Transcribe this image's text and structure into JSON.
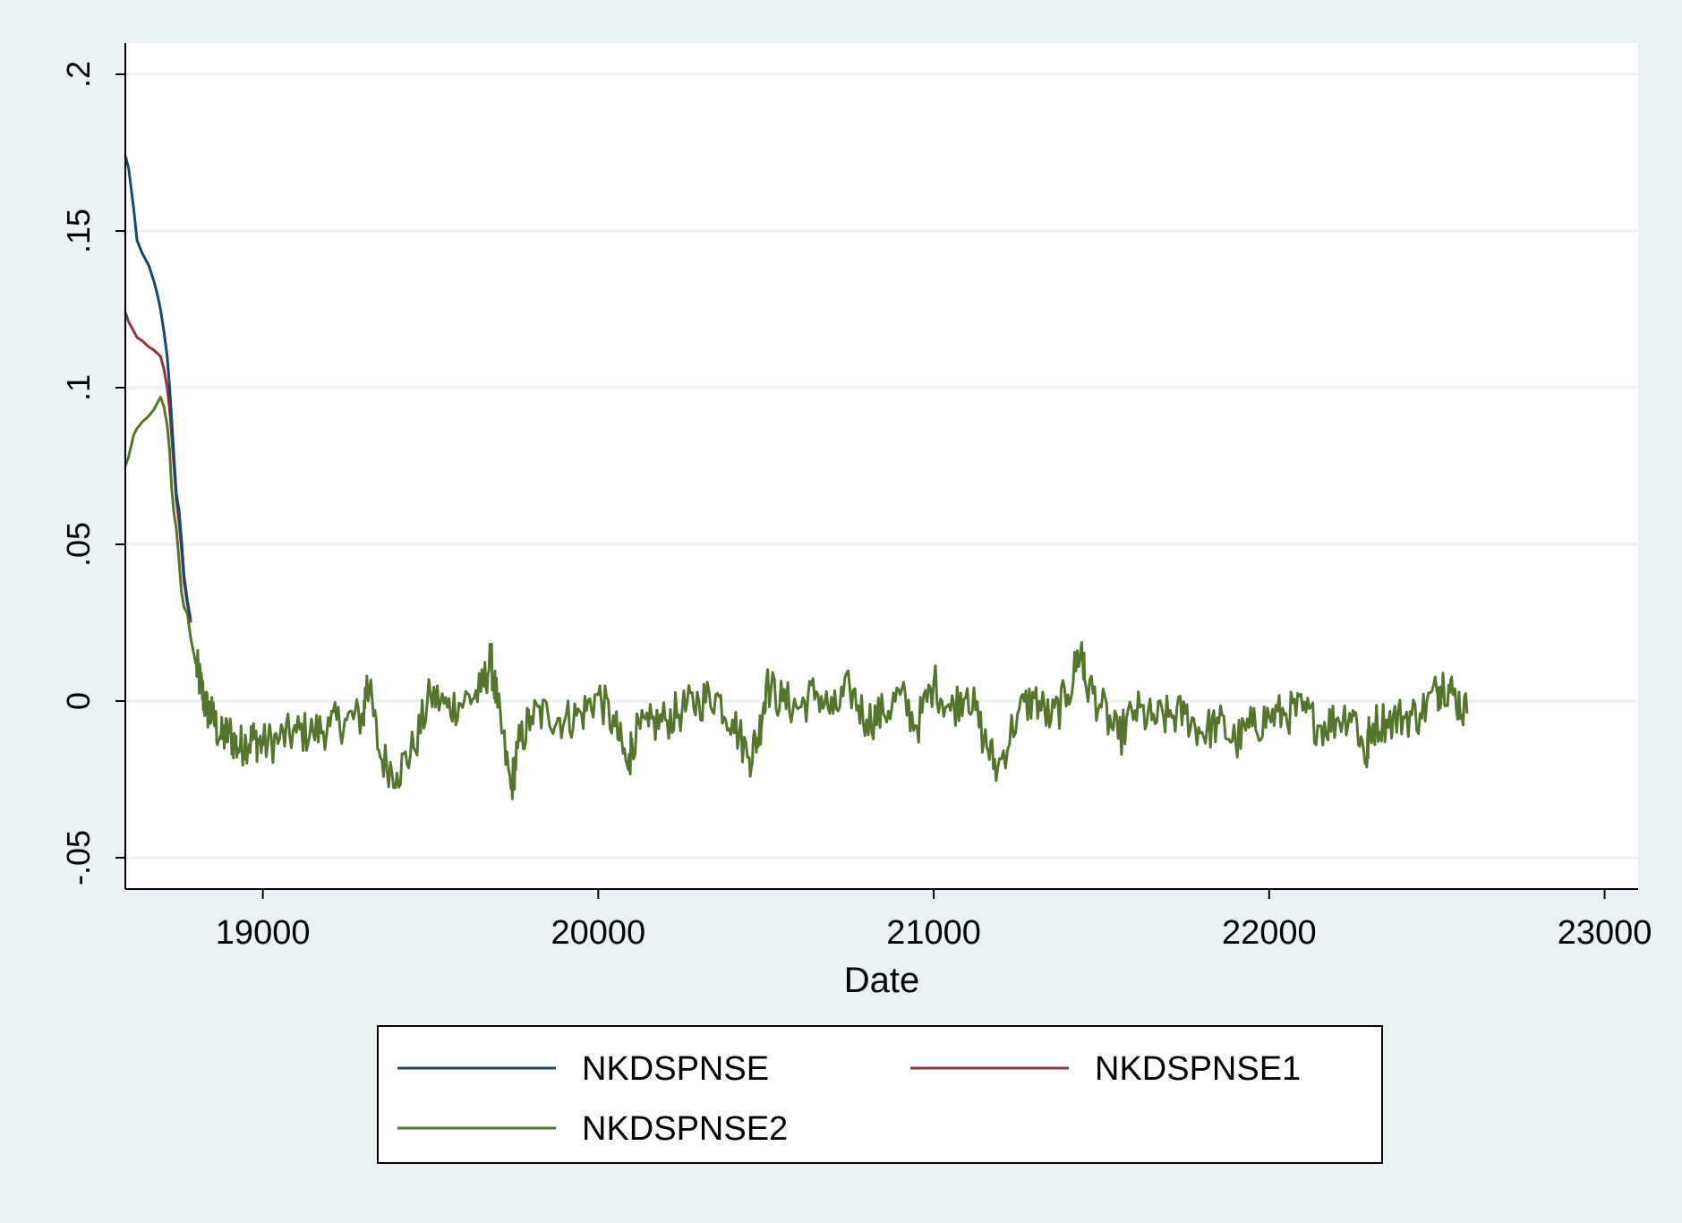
{
  "chart_data": {
    "type": "line",
    "xlabel": "Date",
    "ylabel": "",
    "title": "",
    "xlim": [
      18590,
      23100
    ],
    "ylim": [
      -0.06,
      0.21
    ],
    "x_ticks": [
      19000,
      20000,
      21000,
      22000,
      23000
    ],
    "x_tick_labels": [
      "19000",
      "20000",
      "21000",
      "22000",
      "23000"
    ],
    "y_ticks": [
      -0.05,
      0,
      0.05,
      0.1,
      0.15,
      0.2
    ],
    "y_tick_labels": [
      "-.05",
      "0",
      ".05",
      ".1",
      ".15",
      ".2"
    ],
    "grid": true,
    "legend_position": "bottom",
    "colors": {
      "outer_background": "#eaf2f3",
      "plot_background": "#ffffff",
      "grid": "#eaf2f3",
      "legend_border": "#000000"
    },
    "series": [
      {
        "name": "NKDSPNSE",
        "color": "#1a476f",
        "x": [
          18590,
          18600,
          18615,
          18625,
          18640,
          18660,
          18675,
          18685,
          18695,
          18705,
          18715,
          18722,
          18728,
          18735,
          18742,
          18750,
          18757,
          18765,
          18775,
          18785
        ],
        "y": [
          0.174,
          0.17,
          0.157,
          0.147,
          0.143,
          0.139,
          0.134,
          0.13,
          0.125,
          0.118,
          0.11,
          0.1,
          0.09,
          0.078,
          0.066,
          0.061,
          0.052,
          0.04,
          0.032,
          0.026
        ]
      },
      {
        "name": "NKDSPNSE1",
        "color": "#90353b",
        "x": [
          18590,
          18600,
          18615,
          18625,
          18640,
          18660,
          18675,
          18685,
          18695,
          18705,
          18715,
          18722,
          18728,
          18735,
          18742,
          18750,
          18757,
          18765,
          18775,
          18785
        ],
        "y": [
          0.124,
          0.121,
          0.118,
          0.116,
          0.115,
          0.113,
          0.112,
          0.111,
          0.11,
          0.106,
          0.1,
          0.093,
          0.085,
          0.075,
          0.064,
          0.057,
          0.049,
          0.038,
          0.031,
          0.025
        ]
      },
      {
        "name": "NKDSPNSE2",
        "color": "#55752f",
        "x": [
          18590,
          18600,
          18615,
          18625,
          18640,
          18660,
          18675,
          18685,
          18695,
          18705,
          18715,
          18722,
          18728,
          18735,
          18742,
          18750,
          18757,
          18765,
          18775,
          18785,
          18800,
          18815,
          18830,
          18850,
          18875,
          18900,
          18925,
          18950,
          18975,
          19000,
          19050,
          19100,
          19150,
          19200,
          19250,
          19300,
          19310,
          19350,
          19400,
          19450,
          19500,
          19550,
          19600,
          19650,
          19680,
          19700,
          19740,
          19760,
          19800,
          19850,
          19900,
          19950,
          20000,
          20050,
          20090,
          20100,
          20150,
          20200,
          20250,
          20300,
          20350,
          20400,
          20450,
          20480,
          20500,
          20550,
          20600,
          20650,
          20700,
          20750,
          20800,
          20850,
          20900,
          20950,
          21000,
          21050,
          21100,
          21150,
          21190,
          21250,
          21300,
          21350,
          21400,
          21440,
          21450,
          21500,
          21550,
          21600,
          21650,
          21700,
          21750,
          21800,
          21850,
          21900,
          21950,
          22000,
          22050,
          22100,
          22150,
          22200,
          22250,
          22290,
          22300,
          22350,
          22400,
          22450,
          22500,
          22520,
          22550,
          22590
        ],
        "y": [
          0.075,
          0.078,
          0.085,
          0.087,
          0.089,
          0.091,
          0.093,
          0.095,
          0.097,
          0.094,
          0.088,
          0.08,
          0.068,
          0.06,
          0.055,
          0.045,
          0.035,
          0.03,
          0.028,
          0.02,
          0.012,
          0.005,
          -0.002,
          -0.005,
          -0.012,
          -0.01,
          -0.015,
          -0.013,
          -0.012,
          -0.014,
          -0.012,
          -0.01,
          -0.01,
          -0.008,
          -0.006,
          -0.005,
          0.008,
          -0.018,
          -0.023,
          -0.015,
          0.002,
          -0.002,
          0.0,
          0.003,
          0.013,
          -0.002,
          -0.028,
          -0.015,
          -0.005,
          -0.004,
          -0.006,
          -0.004,
          0.002,
          -0.008,
          -0.022,
          -0.012,
          -0.008,
          -0.006,
          -0.003,
          0.0,
          0.002,
          -0.006,
          -0.018,
          -0.01,
          0.005,
          0.0,
          -0.002,
          0.003,
          -0.004,
          0.004,
          -0.006,
          -0.004,
          0.002,
          -0.008,
          0.006,
          -0.003,
          0.004,
          -0.012,
          -0.022,
          -0.004,
          0.001,
          -0.006,
          0.002,
          0.018,
          0.007,
          -0.002,
          -0.012,
          -0.003,
          -0.006,
          -0.005,
          -0.004,
          -0.01,
          -0.007,
          -0.013,
          -0.008,
          -0.005,
          -0.004,
          -0.003,
          -0.008,
          -0.006,
          -0.003,
          -0.019,
          -0.008,
          -0.006,
          -0.005,
          -0.004,
          0.003,
          0.006,
          0.002,
          -0.004
        ]
      }
    ]
  }
}
